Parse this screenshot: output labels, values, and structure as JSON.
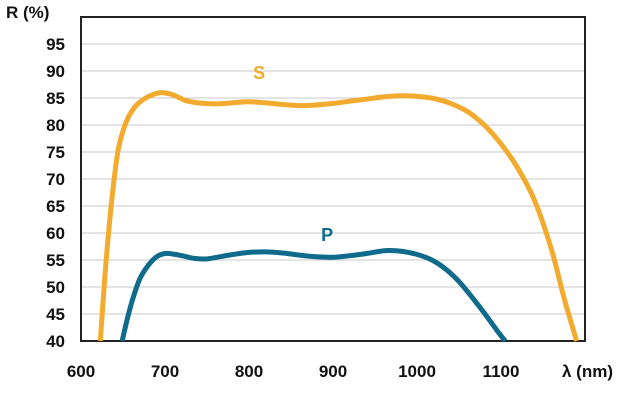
{
  "chart_data": {
    "type": "line",
    "ylabel": "R (%)",
    "xlabel": "λ (nm)",
    "xlim": [
      600,
      1200
    ],
    "ylim": [
      40,
      100
    ],
    "xticks": [
      600,
      700,
      800,
      900,
      1000,
      1100
    ],
    "yticks": [
      40,
      45,
      50,
      55,
      60,
      65,
      70,
      75,
      80,
      85,
      90,
      95
    ],
    "grid": "horizontal",
    "series": [
      {
        "name": "S",
        "color": "#f2ab2e",
        "label_at": [
          812,
          88.5
        ],
        "x": [
          623,
          630,
          638,
          645,
          655,
          665,
          675,
          685,
          695,
          705,
          715,
          725,
          740,
          760,
          780,
          800,
          820,
          840,
          860,
          880,
          900,
          920,
          940,
          960,
          980,
          1000,
          1020,
          1040,
          1060,
          1080,
          1100,
          1120,
          1140,
          1160,
          1175,
          1190
        ],
        "values": [
          40,
          55,
          68,
          76,
          81,
          83.5,
          84.8,
          85.6,
          86,
          85.8,
          85.2,
          84.5,
          84.1,
          83.9,
          84.1,
          84.3,
          84.1,
          83.8,
          83.6,
          83.7,
          84,
          84.4,
          84.8,
          85.2,
          85.4,
          85.3,
          84.9,
          84,
          82.5,
          80,
          76.5,
          72,
          66,
          57,
          48,
          40
        ]
      },
      {
        "name": "P",
        "color": "#0f6a8b",
        "label_at": [
          893,
          58.5
        ],
        "x": [
          649,
          655,
          662,
          670,
          680,
          690,
          700,
          710,
          720,
          735,
          750,
          765,
          780,
          800,
          820,
          840,
          860,
          880,
          900,
          920,
          940,
          960,
          975,
          990,
          1005,
          1020,
          1035,
          1050,
          1065,
          1080,
          1095,
          1105
        ],
        "values": [
          40,
          44,
          48,
          51.5,
          54,
          55.6,
          56.2,
          56.1,
          55.8,
          55.3,
          55.2,
          55.6,
          56,
          56.4,
          56.5,
          56.3,
          55.9,
          55.6,
          55.5,
          55.8,
          56.2,
          56.7,
          56.7,
          56.4,
          55.8,
          54.8,
          53.2,
          51,
          48.2,
          45.2,
          42,
          40
        ]
      }
    ]
  }
}
